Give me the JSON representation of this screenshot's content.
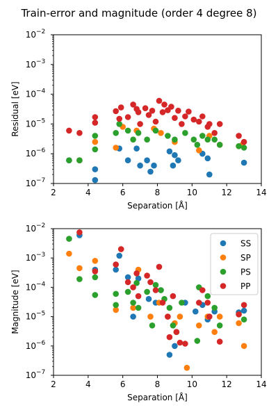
{
  "figure": {
    "title": "Train-error and magnitude (order 4 degree 8)"
  },
  "colors": {
    "SS": "#1f77b4",
    "SP": "#ff7f0e",
    "PS": "#2ca02c",
    "PP": "#d62728"
  },
  "chart_data": [
    {
      "type": "scatter",
      "title": "",
      "xlabel": "Separation [Å]",
      "ylabel": "Residual [eV]",
      "xlim": [
        2,
        14
      ],
      "ylim": [
        1e-07,
        0.01
      ],
      "yscale": "log",
      "xticks": [
        "2",
        "4",
        "6",
        "8",
        "10",
        "12",
        "14"
      ],
      "yticks": [
        "10^-7",
        "10^-6",
        "10^-5",
        "10^-4",
        "10^-3",
        "10^-2"
      ],
      "grid": false,
      "legend": "none",
      "series": [
        {
          "name": "SS",
          "color": "#1f77b4",
          "x": [
            2.9,
            3.5,
            4.4,
            4.4,
            5.8,
            6.3,
            6.8,
            7.0,
            7.4,
            7.6,
            7.8,
            8.7,
            8.9,
            9.0,
            9.2,
            10.6,
            10.9,
            11.0,
            13.0
          ],
          "y": [
            6e-07,
            6e-07,
            3e-07,
            1.3e-07,
            1.5e-06,
            6e-07,
            1.5e-06,
            4e-07,
            6e-07,
            2.5e-07,
            4e-07,
            1.2e-06,
            4e-07,
            9e-07,
            6e-07,
            1e-06,
            7e-07,
            2e-07,
            5e-07
          ]
        },
        {
          "name": "SP",
          "color": "#ff7f0e",
          "x": [
            3.5,
            4.4,
            5.6,
            6.0,
            6.8,
            7.8,
            8.2,
            9.0,
            10.4,
            11.0,
            11.6,
            12.7,
            12.9
          ],
          "y": [
            6e-07,
            2.5e-06,
            1.6e-06,
            8e-06,
            6e-06,
            7e-06,
            5e-06,
            2.5e-06,
            1.3e-06,
            4e-06,
            2e-06,
            1.8e-06,
            2e-06
          ]
        },
        {
          "name": "PS",
          "color": "#2ca02c",
          "x": [
            2.9,
            3.5,
            4.4,
            4.4,
            5.6,
            5.8,
            6.3,
            6.6,
            6.9,
            7.4,
            7.9,
            8.6,
            9.0,
            9.6,
            10.1,
            10.3,
            10.6,
            10.9,
            11.3,
            11.6,
            12.7,
            13.0
          ],
          "y": [
            6e-07,
            6e-07,
            1.4e-06,
            4e-06,
            5e-06,
            1e-05,
            6e-06,
            3e-06,
            5e-06,
            3e-06,
            6e-06,
            4e-06,
            3e-06,
            5e-06,
            3e-06,
            2e-06,
            4e-06,
            3e-06,
            3e-06,
            2e-06,
            1.8e-06,
            1.6e-06
          ]
        },
        {
          "name": "PP",
          "color": "#d62728",
          "x": [
            2.9,
            3.5,
            4.4,
            4.4,
            5.6,
            5.8,
            5.9,
            6.3,
            6.6,
            6.8,
            6.9,
            7.0,
            7.3,
            7.5,
            7.7,
            7.9,
            8.1,
            8.3,
            8.4,
            8.6,
            8.8,
            9.0,
            9.2,
            9.4,
            9.6,
            9.8,
            10.1,
            10.4,
            10.6,
            10.9,
            11.0,
            11.3,
            11.6,
            12.7,
            13.0
          ],
          "y": [
            6e-06,
            5e-06,
            1.1e-05,
            1.7e-05,
            2.7e-05,
            1.5e-05,
            3.6e-05,
            1.7e-05,
            4.5e-05,
            3.2e-05,
            2.5e-05,
            1e-05,
            3.4e-05,
            2e-05,
            2.8e-05,
            1.2e-05,
            6e-05,
            2.5e-05,
            4.5e-05,
            2.9e-05,
            3.8e-05,
            1.6e-05,
            2.8e-05,
            1e-05,
            1.8e-05,
            2.6e-05,
            1.4e-05,
            1.2e-05,
            1.8e-05,
            8e-06,
            1e-05,
            5e-06,
            1e-05,
            4e-06,
            2.5e-06
          ]
        }
      ]
    },
    {
      "type": "scatter",
      "title": "",
      "xlabel": "Separation [Å]",
      "ylabel": "Magnitude [eV]",
      "xlim": [
        2,
        14
      ],
      "ylim": [
        1e-07,
        0.01
      ],
      "yscale": "log",
      "xticks": [
        "2",
        "4",
        "6",
        "8",
        "10",
        "12",
        "14"
      ],
      "yticks": [
        "10^-7",
        "10^-6",
        "10^-5",
        "10^-4",
        "10^-3",
        "10^-2"
      ],
      "grid": false,
      "legend": "top-right",
      "series": [
        {
          "name": "SS",
          "color": "#1f77b4",
          "x": [
            3.5,
            4.4,
            5.6,
            5.8,
            6.3,
            6.6,
            6.9,
            7.5,
            7.9,
            8.2,
            8.7,
            9.0,
            9.6,
            10.2,
            10.6,
            10.9,
            11.3,
            12.7,
            13.0
          ],
          "y": [
            0.006,
            0.0004,
            0.0004,
            0.0012,
            0.00022,
            1e-05,
            0.0002,
            4e-05,
            3e-05,
            8e-05,
            5e-07,
            1e-06,
            3e-05,
            1.5e-05,
            2.5e-05,
            8e-06,
            1.5e-05,
            1.4e-05,
            1.6e-05
          ]
        },
        {
          "name": "SP",
          "color": "#ff7f0e",
          "x": [
            2.9,
            3.5,
            4.4,
            5.6,
            5.9,
            6.6,
            6.9,
            7.6,
            8.1,
            8.6,
            9.0,
            9.3,
            9.7,
            10.4,
            10.9,
            11.3,
            11.6,
            12.7,
            13.0
          ],
          "y": [
            0.0014,
            0.00045,
            0.0008,
            1.7e-05,
            0.002,
            2e-05,
            0.0004,
            1e-05,
            3e-05,
            1e-05,
            6e-06,
            1e-05,
            1.8e-07,
            5e-06,
            1e-05,
            3e-06,
            1e-05,
            6e-06,
            1e-06
          ]
        },
        {
          "name": "PS",
          "color": "#2ca02c",
          "x": [
            2.9,
            3.5,
            4.4,
            4.4,
            5.6,
            5.6,
            6.3,
            6.6,
            6.8,
            6.9,
            7.4,
            7.7,
            7.9,
            8.2,
            8.4,
            8.7,
            8.9,
            9.1,
            9.4,
            10.3,
            10.4,
            10.9,
            11.3,
            11.6,
            12.7,
            13.0
          ],
          "y": [
            0.0045,
            0.00019,
            5.5e-05,
            0.00022,
            6e-05,
            2.5e-05,
            7e-05,
            3e-05,
            0.00014,
            2e-05,
            7e-05,
            5e-06,
            0.00012,
            8e-05,
            4e-05,
            2e-05,
            5e-06,
            3e-06,
            3e-05,
            1.5e-06,
            0.0001,
            5e-05,
            2e-05,
            5e-06,
            1.2e-05,
            8e-06
          ]
        },
        {
          "name": "PP",
          "color": "#d62728",
          "x": [
            3.5,
            4.4,
            5.6,
            5.9,
            6.3,
            6.6,
            6.8,
            6.9,
            7.4,
            7.6,
            7.9,
            8.1,
            8.3,
            8.6,
            8.7,
            8.9,
            9.1,
            9.3,
            9.6,
            10.4,
            10.6,
            10.9,
            11.0,
            11.6,
            12.7,
            13.0
          ],
          "y": [
            0.0075,
            0.00035,
            0.0006,
            0.002,
            0.00015,
            0.0001,
            0.0003,
            5e-05,
            0.00025,
            0.00015,
            8e-05,
            0.0005,
            3e-05,
            1e-05,
            2e-06,
            5e-05,
            3e-06,
            1.3e-06,
            1.2e-06,
            3e-05,
            8e-05,
            3e-05,
            1e-05,
            1.4e-06,
            1.2e-05,
            2.5e-05
          ]
        }
      ]
    }
  ]
}
